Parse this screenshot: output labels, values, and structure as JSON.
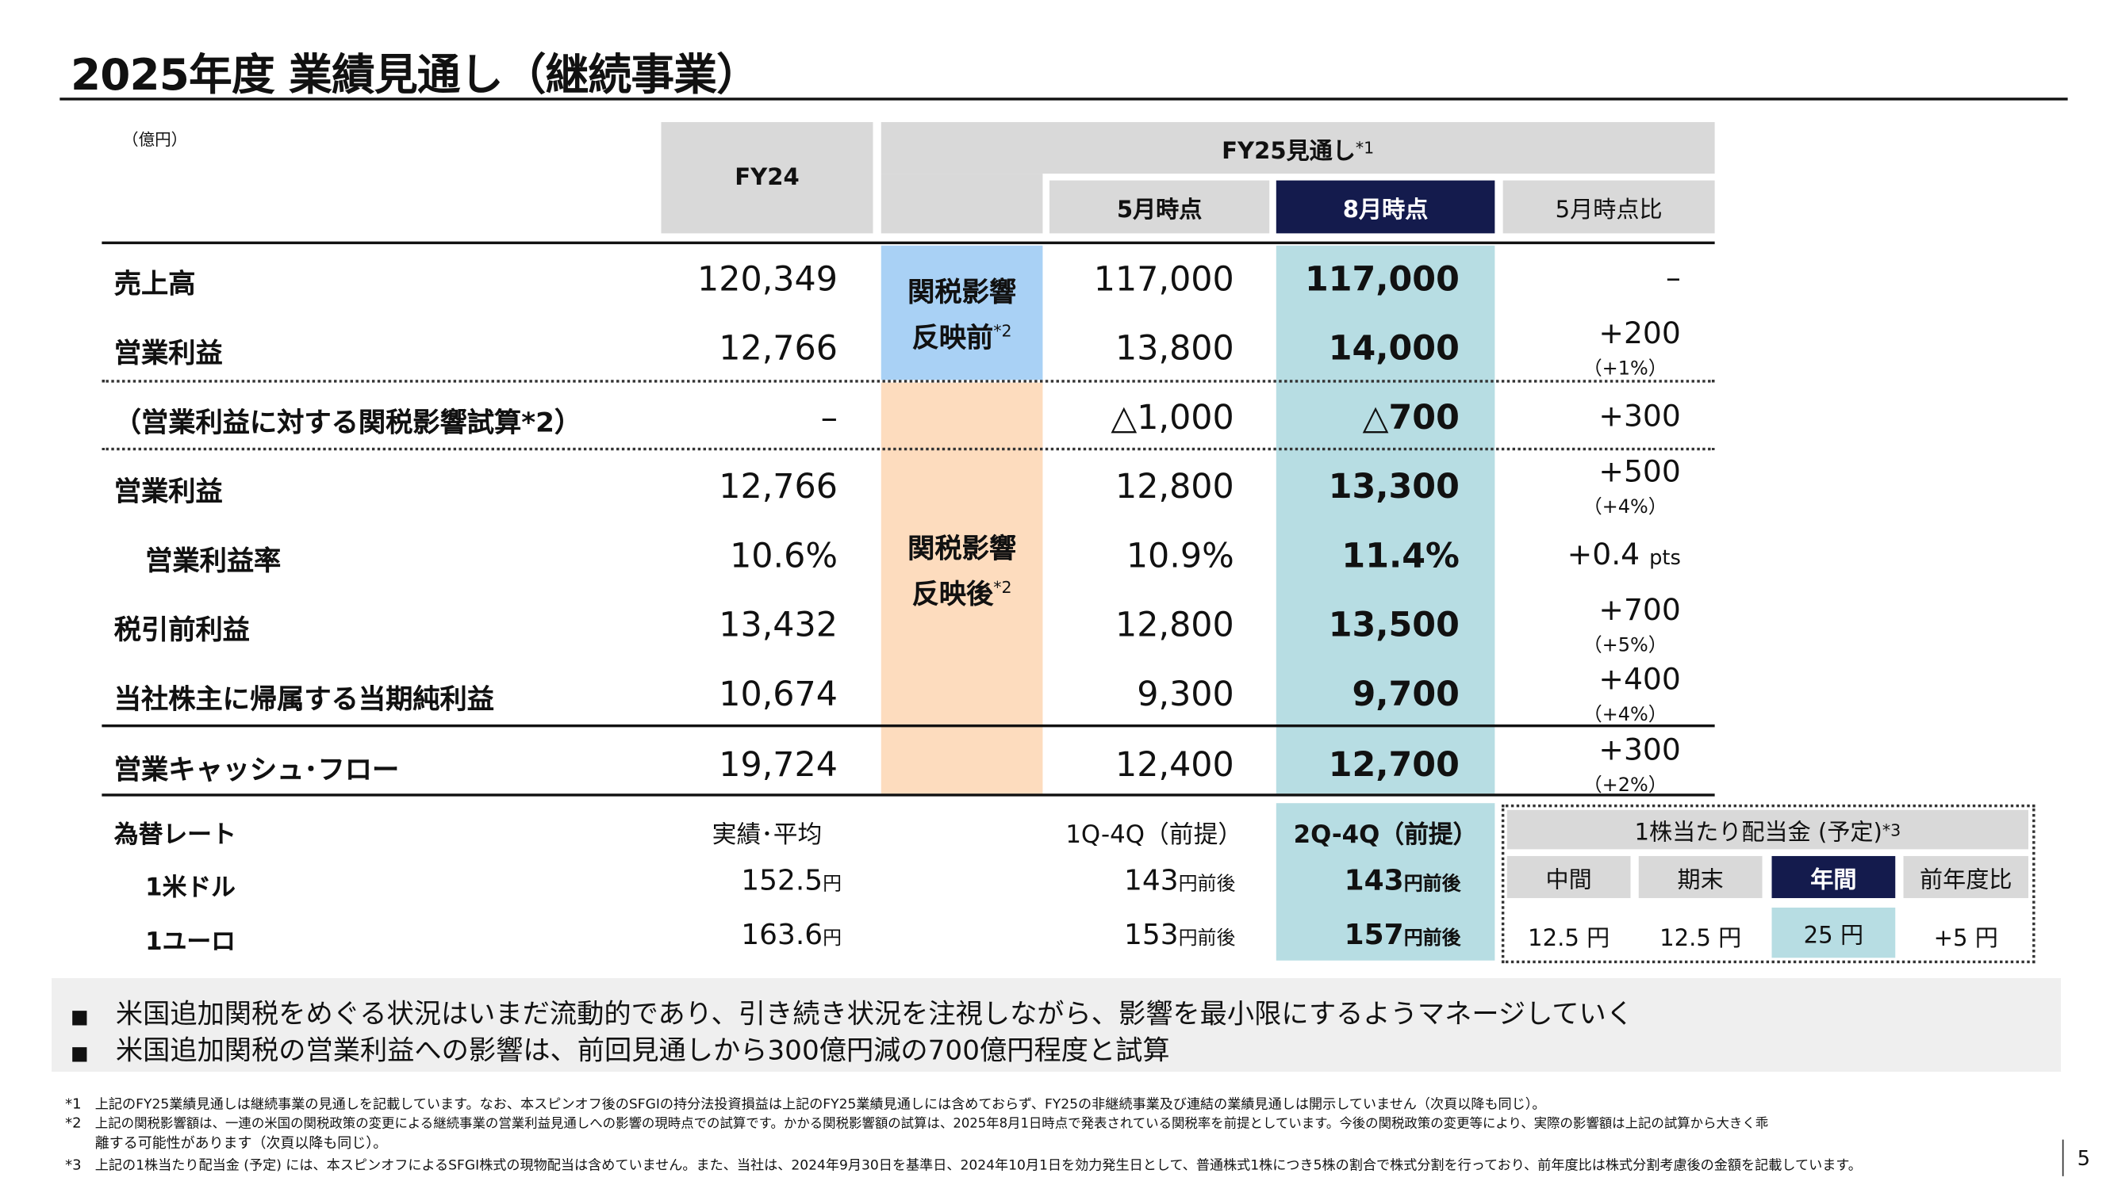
{
  "title": "2025年度 業績見通し（継続事業）",
  "unit": "（億円）",
  "header": {
    "fy24": "FY24",
    "fy25": "FY25見通し",
    "fy25_note": "*1",
    "may": "5月時点",
    "aug": "8月時点",
    "diff": "5月時点比"
  },
  "tariff_before": {
    "line1": "関税影響",
    "line2": "反映前",
    "note": "*2"
  },
  "tariff_after": {
    "line1": "関税影響",
    "line2": "反映後",
    "note": "*2"
  },
  "rows": [
    {
      "label": "売上高",
      "fy24": "120,349",
      "may": "117,000",
      "aug": "117,000",
      "diff": "–",
      "pct": ""
    },
    {
      "label": "営業利益",
      "fy24": "12,766",
      "may": "13,800",
      "aug": "14,000",
      "diff": "+200",
      "pct": "（+1%）"
    },
    {
      "label": "（営業利益に対する関税影響試算*2）",
      "fy24": "–",
      "may": "△1,000",
      "aug": "△700",
      "diff": "+300",
      "pct": ""
    },
    {
      "label": "営業利益",
      "fy24": "12,766",
      "may": "12,800",
      "aug": "13,300",
      "diff": "+500",
      "pct": "（+4%）"
    },
    {
      "label": "営業利益率",
      "fy24": "10.6%",
      "may": "10.9%",
      "aug": "11.4%",
      "diff": "+0.4",
      "diff_unit": "pts",
      "pct": ""
    },
    {
      "label": "税引前利益",
      "fy24": "13,432",
      "may": "12,800",
      "aug": "13,500",
      "diff": "+700",
      "pct": "（+5%）"
    },
    {
      "label": "当社株主に帰属する当期純利益",
      "fy24": "10,674",
      "may": "9,300",
      "aug": "9,700",
      "diff": "+400",
      "pct": "（+4%）"
    },
    {
      "label": "営業キャッシュ･フロー",
      "fy24": "19,724",
      "may": "12,400",
      "aug": "12,700",
      "diff": "+300",
      "pct": "（+2%）"
    }
  ],
  "fx": {
    "label": "為替レート",
    "fy24_head": "実績･平均",
    "may_head": "1Q-4Q（前提）",
    "aug_head": "2Q-4Q（前提）",
    "rows": [
      {
        "label": "1米ドル",
        "fy24": "152.5",
        "fy24_unit": "円",
        "may": "143",
        "may_unit": "円前後",
        "aug": "143",
        "aug_unit": "円前後"
      },
      {
        "label": "1ユーロ",
        "fy24": "163.6",
        "fy24_unit": "円",
        "may": "153",
        "may_unit": "円前後",
        "aug": "157",
        "aug_unit": "円前後"
      }
    ]
  },
  "dividend": {
    "title": "1株当たり配当金 (予定)",
    "note": "*3",
    "headers": [
      "中間",
      "期末",
      "年間",
      "前年度比"
    ],
    "values": [
      "12.5 円",
      "12.5 円",
      "25 円",
      "+5 円"
    ]
  },
  "bullets": [
    "米国追加関税をめぐる状況はいまだ流動的であり、引き続き状況を注視しながら、影響を最小限にするようマネージしていく",
    "米国追加関税の営業利益への影響は、前回見通しから300億円減の700億円程度と試算"
  ],
  "bullet_marker": "■",
  "footnotes": [
    {
      "mark": "*1",
      "text": "上記のFY25業績見通しは継続事業の見通しを記載しています。なお、本スピンオフ後のSFGIの持分法投資損益は上記のFY25業績見通しには含めておらず、FY25の非継続事業及び連結の業績見通しは開示していません（次頁以降も同じ）。"
    },
    {
      "mark": "*2",
      "text": "上記の関税影響額は、一連の米国の関税政策の変更による継続事業の営業利益見通しへの影響の現時点での試算です。かかる関税影響額の試算は、2025年8月1日時点で発表されている関税率を前提としています。今後の関税政策の変更等により、実際の影響額は上記の試算から大きく乖",
      "cont": "離する可能性があります（次頁以降も同じ）。"
    },
    {
      "mark": "*3",
      "text": "上記の1株当たり配当金 (予定) には、本スピンオフによるSFGI株式の現物配当は含めていません。また、当社は、2024年9月30日を基準日、2024年10月1日を効力発生日として、普通株式1株につき5株の割合で株式分割を行っており、前年度比は株式分割考慮後の金額を記載しています。"
    }
  ],
  "page_number": "5",
  "colors": {
    "navy": "#141b4d",
    "teal": "#b7dde3",
    "blue": "#a9d1f5",
    "orange": "#fddcbe",
    "gray": "#d9d9d9"
  }
}
